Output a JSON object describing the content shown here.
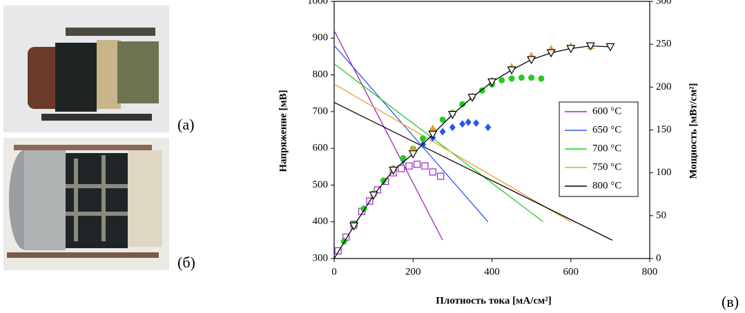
{
  "panel_labels": [
    "(а)",
    "(б)",
    "(в)"
  ],
  "chart_data": {
    "type": "line",
    "x_label": "Плотность тока [мА/см²]",
    "y_label": "Напряжение [мВ]",
    "y2_label": "Мощность [мВт/см²]",
    "xlim": [
      0,
      800
    ],
    "xticks": [
      0,
      200,
      400,
      600,
      800
    ],
    "ylim": [
      300,
      1000
    ],
    "yticks": [
      300,
      400,
      500,
      600,
      700,
      800,
      900,
      1000
    ],
    "y2lim": [
      0,
      300
    ],
    "y2ticks": [
      0,
      50,
      100,
      150,
      200,
      250,
      300
    ],
    "legend": "right",
    "series": [
      {
        "name": "600 °C",
        "color": "#a020c0",
        "x": [
          0,
          275
        ],
        "values": [
          920,
          350
        ]
      },
      {
        "name": "650 °C",
        "color": "#2a55f0",
        "x": [
          0,
          390
        ],
        "values": [
          880,
          400
        ]
      },
      {
        "name": "700 °C",
        "color": "#22cc22",
        "x": [
          0,
          530
        ],
        "values": [
          830,
          400
        ]
      },
      {
        "name": "750 °C",
        "color": "#e8a030",
        "x": [
          0,
          600
        ],
        "values": [
          775,
          400
        ]
      },
      {
        "name": "800 °C",
        "color": "#000000",
        "x": [
          0,
          705
        ],
        "values": [
          725,
          350
        ]
      },
      {
        "color": "#a020c0",
        "axis": "y2",
        "marker": "square-open",
        "x": [
          10,
          30,
          50,
          70,
          90,
          110,
          130,
          150,
          170,
          190,
          210,
          230,
          250,
          270
        ],
        "values": [
          9,
          25,
          40,
          55,
          67,
          80,
          90,
          100,
          105,
          108,
          110,
          108,
          101,
          96
        ]
      },
      {
        "color": "#2a55f0",
        "axis": "y2",
        "marker": "diamond",
        "x": [
          25,
          50,
          75,
          100,
          125,
          150,
          175,
          200,
          225,
          250,
          275,
          300,
          325,
          340,
          360,
          390
        ],
        "values": [
          20,
          40,
          58,
          75,
          90,
          104,
          115,
          125,
          133,
          141,
          148,
          153,
          157,
          159,
          158,
          153
        ]
      },
      {
        "color": "#22cc22",
        "axis": "y2",
        "marker": "circle",
        "x": [
          25,
          50,
          75,
          100,
          125,
          150,
          175,
          200,
          225,
          250,
          275,
          300,
          325,
          350,
          375,
          400,
          425,
          450,
          475,
          500,
          525
        ],
        "values": [
          20,
          40,
          58,
          76,
          91,
          105,
          117,
          128,
          140,
          150,
          162,
          170,
          180,
          188,
          196,
          203,
          208,
          210,
          211,
          211,
          210
        ]
      },
      {
        "color": "#e8a030",
        "axis": "y2",
        "marker": "triangle",
        "x": [
          50,
          100,
          150,
          200,
          250,
          300,
          350,
          400,
          450,
          500,
          550,
          600,
          650
        ],
        "values": [
          38,
          76,
          105,
          128,
          152,
          170,
          190,
          208,
          224,
          237,
          245,
          248,
          248
        ]
      },
      {
        "color": "#000000",
        "axis": "y2",
        "marker": "triangle-down-open",
        "connect": true,
        "x": [
          0,
          50,
          100,
          150,
          200,
          250,
          300,
          350,
          400,
          450,
          500,
          550,
          600,
          650,
          700
        ],
        "values": [
          0,
          38,
          74,
          103,
          122,
          145,
          168,
          188,
          206,
          220,
          232,
          240,
          245,
          248,
          247
        ]
      }
    ]
  }
}
